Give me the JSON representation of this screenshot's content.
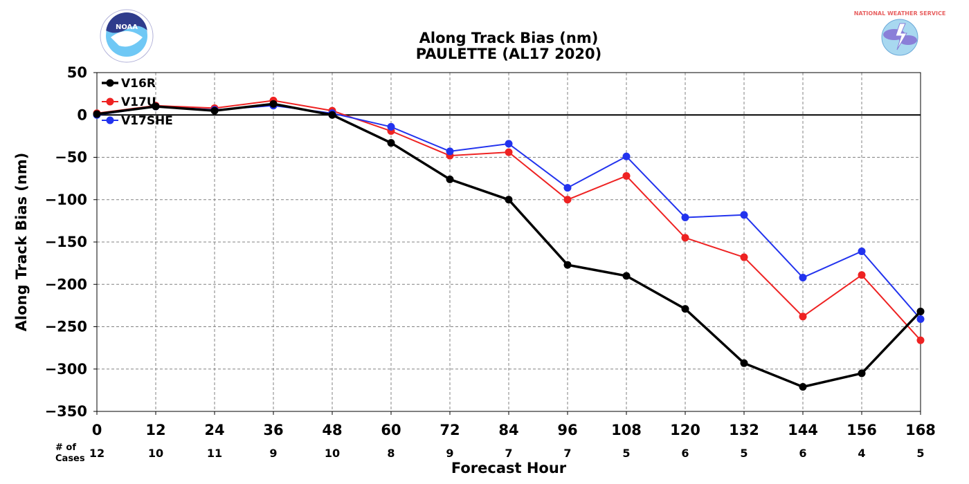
{
  "chart_data": {
    "type": "line",
    "title": "Along Track Bias (nm)",
    "subtitle": "PAULETTE (AL17 2020)",
    "xlabel": "Forecast Hour",
    "ylabel": "Along Track Bias (nm)",
    "x": [
      0,
      12,
      24,
      36,
      48,
      60,
      72,
      84,
      96,
      108,
      120,
      132,
      144,
      156,
      168
    ],
    "xlim": [
      0,
      168
    ],
    "ylim": [
      -350,
      50
    ],
    "yticks": [
      50,
      0,
      -50,
      -100,
      -150,
      -200,
      -250,
      -300,
      -350
    ],
    "ytick_labels": [
      "50",
      "0",
      "−50",
      "−100",
      "−150",
      "−200",
      "−250",
      "−300",
      "−350"
    ],
    "grid": true,
    "legend_position": "top-left",
    "cases_label_line1": "# of",
    "cases_label_line2": "Cases",
    "cases": [
      12,
      10,
      11,
      9,
      10,
      8,
      9,
      7,
      7,
      5,
      6,
      5,
      6,
      4,
      5
    ],
    "series": [
      {
        "name": "V16R",
        "color": "#000000",
        "values": [
          1,
          10,
          5,
          13,
          0,
          -33,
          -76,
          -100,
          -177,
          -190,
          -229,
          -293,
          -321,
          -305,
          -232
        ]
      },
      {
        "name": "V17U",
        "color": "#ee2222",
        "values": [
          2,
          11,
          8,
          17,
          5,
          -19,
          -48,
          -44,
          -100,
          -72,
          -145,
          -168,
          -238,
          -189,
          -266
        ]
      },
      {
        "name": "V17SHE",
        "color": "#2233ee",
        "values": [
          0,
          10,
          6,
          11,
          2,
          -14,
          -43,
          -34,
          -86,
          -49,
          -121,
          -118,
          -192,
          -161,
          -241
        ]
      }
    ]
  },
  "logos": {
    "left_text": "NOAA",
    "right_text": "NATIONAL WEATHER SERVICE"
  }
}
